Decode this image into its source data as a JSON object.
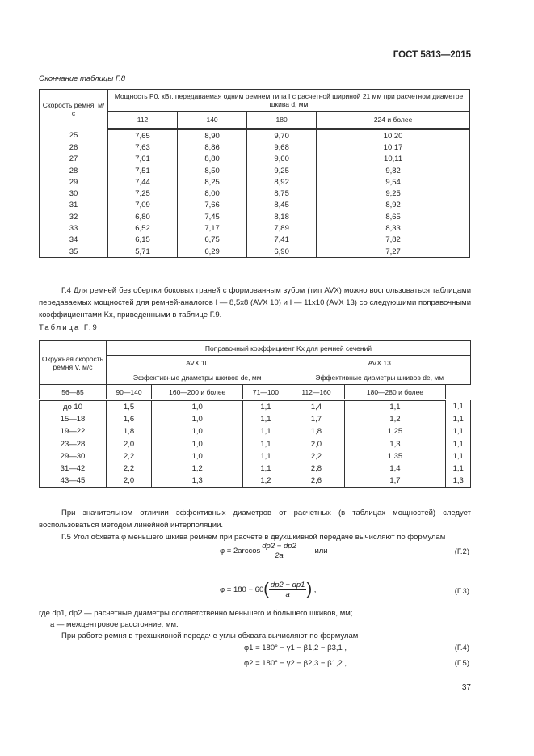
{
  "header": {
    "standard": "ГОСТ 5813—2015"
  },
  "table8": {
    "caption": "Окончание таблицы Г.8",
    "col0": "Скорость ремня, м/с",
    "group": "Мощность P0, кВт, передаваемая одним ремнем типа I с расчетной шириной 21 мм при расчетном диаметре шкива d, мм",
    "cols": [
      "112",
      "140",
      "180",
      "224 и более"
    ],
    "rows": [
      [
        "25",
        "7,65",
        "8,90",
        "9,70",
        "10,20"
      ],
      [
        "26",
        "7,63",
        "8,86",
        "9,68",
        "10,17"
      ],
      [
        "27",
        "7,61",
        "8,80",
        "9,60",
        "10,11"
      ],
      [
        "28",
        "7,51",
        "8,50",
        "9,25",
        "9,82"
      ],
      [
        "29",
        "7,44",
        "8,25",
        "8,92",
        "9,54"
      ],
      [
        "30",
        "7,25",
        "8,00",
        "8,75",
        "9,25"
      ],
      [
        "31",
        "7,09",
        "7,66",
        "8,45",
        "8,92"
      ],
      [
        "32",
        "6,80",
        "7,45",
        "8,18",
        "8,65"
      ],
      [
        "33",
        "6,52",
        "7,17",
        "7,89",
        "8,33"
      ],
      [
        "34",
        "6,15",
        "6,75",
        "7,41",
        "7,82"
      ],
      [
        "35",
        "5,71",
        "6,29",
        "6,90",
        "7,27"
      ]
    ]
  },
  "para_g4": "Г.4 Для ремней без обертки боковых граней с формованным зубом (тип AVX) можно воспользоваться таблицами передаваемых мощностей для ремней-аналогов I — 8,5x8 (AVX 10)  и I — 11x10 (AVX 13) со следующими поправочными коэффициентами Kx, приведенными в таблице Г.9.",
  "table9": {
    "label": "Таблица Г.9",
    "col0": "Окружная скорость ремня V, м/с",
    "group": "Поправочный коэффициент Kx для ремней сечений",
    "sections": [
      "AVX 10",
      "AVX 13"
    ],
    "diam": [
      "Эффективные диаметры шкивов de, мм",
      "Эффективные диаметры шкивов de, мм"
    ],
    "cols": [
      "56—85",
      "90—140",
      "160—200 и более",
      "71—100",
      "112—160",
      "180—280 и более"
    ],
    "rows": [
      [
        "до 10",
        "1,5",
        "1,0",
        "1,1",
        "1,4",
        "1,1",
        "1,1"
      ],
      [
        "15—18",
        "1,6",
        "1,0",
        "1,1",
        "1,7",
        "1,2",
        "1,1"
      ],
      [
        "19—22",
        "1,8",
        "1,0",
        "1,1",
        "1,8",
        "1,25",
        "1,1"
      ],
      [
        "23—28",
        "2,0",
        "1,0",
        "1,1",
        "2,0",
        "1,3",
        "1,1"
      ],
      [
        "29—30",
        "2,2",
        "1,0",
        "1,1",
        "2,2",
        "1,35",
        "1,1"
      ],
      [
        "31—42",
        "2,2",
        "1,2",
        "1,1",
        "2,8",
        "1,4",
        "1,1"
      ],
      [
        "43—45",
        "2,0",
        "1,3",
        "1,2",
        "2,6",
        "1,7",
        "1,3"
      ]
    ]
  },
  "para_interp": "При значительном отличии эффективных диаметров от расчетных (в таблицах мощностей) следует воспользоваться методом линейной интерполяции.",
  "para_g5": "Г.5 Угол обхвата φ меньшего шкива ремнем при расчете в двухшкивной передаче вычисляют по формулам",
  "eq2": {
    "lhs": "φ = 2arccos",
    "num": "dp2 − dp2",
    "den": "2a",
    "or": "или",
    "no": "(Г.2)"
  },
  "eq3": {
    "lhs": "φ = 180 − 60",
    "num": "dp2 − dp1",
    "den": "a",
    "no": "(Г.3)"
  },
  "where1": "где dp1, dp2 — расчетные диаметры соответственно меньшего и большего шкивов, мм;",
  "where2": "a — межцентровое расстояние, мм.",
  "para_three": "При работе ремня в трехшкивной передаче углы обхвата вычисляют по формулам",
  "eq4": {
    "text": "φ1 = 180° − γ1 − β1,2 − β3,1 ,",
    "no": "(Г.4)"
  },
  "eq5": {
    "text": "φ2 = 180° − γ2 − β2,3 − β1,2 ,",
    "no": "(Г.5)"
  },
  "page_number": "37"
}
